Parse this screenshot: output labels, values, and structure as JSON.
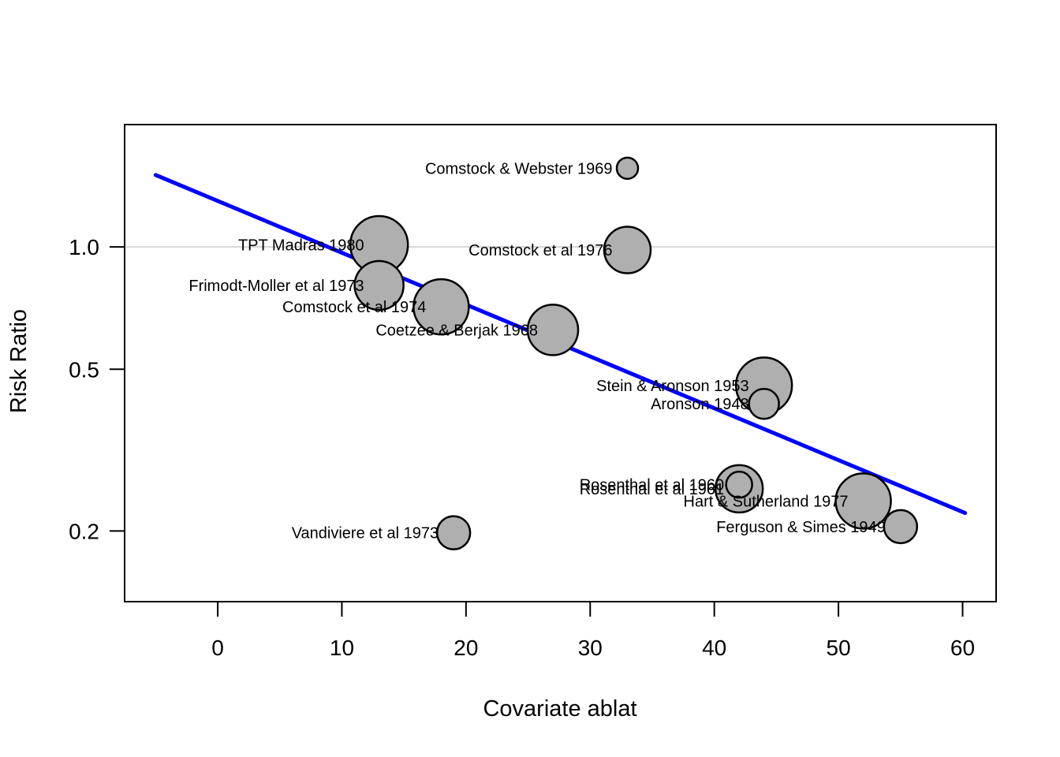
{
  "chart_data": {
    "type": "scatter",
    "subtype": "meta-regression-bubble-plot",
    "title": "",
    "xlabel": "Covariate ablat",
    "ylabel": "Risk Ratio",
    "x_ticks": [
      0,
      10,
      20,
      30,
      40,
      50,
      60
    ],
    "y_ticks": [
      {
        "value": 1.0,
        "label": "1.0"
      },
      {
        "value": 0.5,
        "label": "0.5"
      },
      {
        "value": 0.2,
        "label": "0.2"
      }
    ],
    "xlim": [
      -7.5,
      62.7
    ],
    "ylim": [
      0.134,
      2.0
    ],
    "y_scale": "log",
    "grid": "single light reference line at y = 1.0",
    "reference_line": {
      "y": 1.0
    },
    "regression_line": {
      "x1": -5.0,
      "y1": 1.503,
      "x2": 60.2,
      "y2": 0.2215
    },
    "legend": "none",
    "colors": {
      "bubble_fill": "#afafaf",
      "bubble_stroke": "#000000",
      "regression_line": "#0000ff",
      "reference_line": "#d6d6d6",
      "axis": "#000000",
      "text": "#000000",
      "background": "#ffffff"
    },
    "studies": [
      {
        "label": "Aronson 1948",
        "ablat": 44,
        "rr": 0.411,
        "radius_px": 19.0
      },
      {
        "label": "Ferguson & Simes 1949",
        "ablat": 55,
        "rr": 0.205,
        "radius_px": 21.0
      },
      {
        "label": "Rosenthal et al 1960",
        "ablat": 42,
        "rr": 0.26,
        "radius_px": 16.5
      },
      {
        "label": "Hart & Sutherland 1977",
        "ablat": 52,
        "rr": 0.237,
        "radius_px": 35.0
      },
      {
        "label": "Frimodt-Moller et al 1973",
        "ablat": 13,
        "rr": 0.804,
        "radius_px": 31.0
      },
      {
        "label": "Stein & Aronson 1953",
        "ablat": 44,
        "rr": 0.456,
        "radius_px": 35.5
      },
      {
        "label": "Vandiviere et al 1973",
        "ablat": 19,
        "rr": 0.198,
        "radius_px": 21.0
      },
      {
        "label": "TPT Madras 1980",
        "ablat": 13,
        "rr": 1.012,
        "radius_px": 36.5
      },
      {
        "label": "Coetzee & Berjak 1968",
        "ablat": 27,
        "rr": 0.625,
        "radius_px": 32.0
      },
      {
        "label": "Rosenthal et al 1961",
        "ablat": 42,
        "rr": 0.254,
        "radius_px": 30.0
      },
      {
        "label": "Comstock et al 1974",
        "ablat": 18,
        "rr": 0.712,
        "radius_px": 35.0
      },
      {
        "label": "Comstock & Webster 1969",
        "ablat": 33,
        "rr": 1.562,
        "radius_px": 13.5
      },
      {
        "label": "Comstock et al 1976",
        "ablat": 33,
        "rr": 0.983,
        "radius_px": 29.5
      }
    ]
  }
}
